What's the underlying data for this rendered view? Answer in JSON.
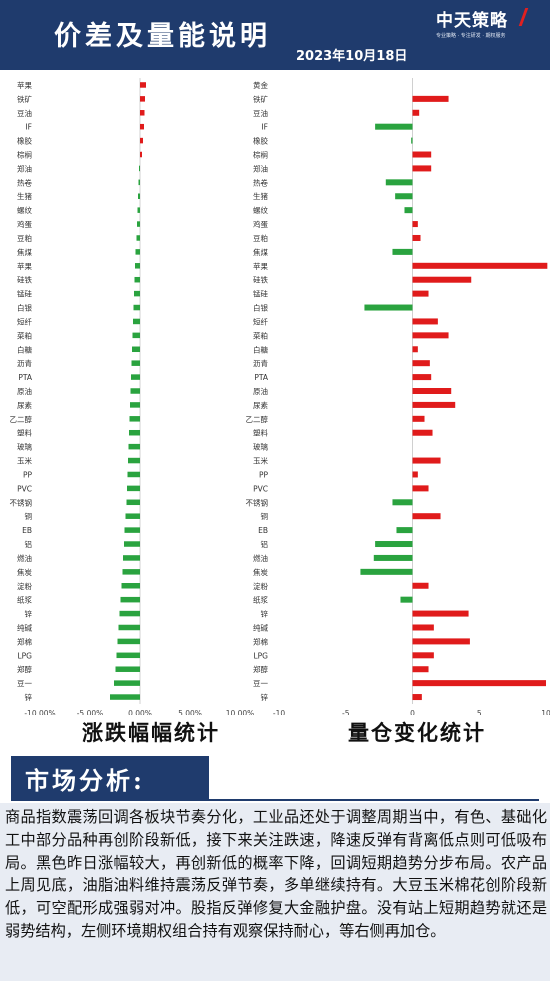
{
  "header": {
    "title": "价差及量能说明",
    "date": "2023年10月18日",
    "logo": {
      "brand": "中天策略",
      "slogan": "专业策略 · 专注研发 · 期权服务"
    }
  },
  "chart_titles": {
    "left": "涨跌幅幅统计",
    "right": "量仓变化统计"
  },
  "market": {
    "label": "市场分析:",
    "text": "商品指数震荡回调各板块节奏分化，工业品还处于调整周期当中，有色、基础化工中部分品种再创阶段新低，接下来关注跌速，降速反弹有背离低点则可低吸布局。黑色昨日涨幅较大，再创新低的概率下降，回调短期趋势分步布局。农产品上周见底，油脂油料维持震荡反弹节奏，多单继续持有。大豆玉米棉花创阶段新低，可空配形成强弱对冲。股指反弹修复大金融护盘。没有站上短期趋势就还是弱势结构，左侧环境期权组合持有观察保持耐心，等右侧再加仓。"
  },
  "chart_data": [
    {
      "type": "bar",
      "orientation": "horizontal",
      "title": "涨跌幅幅统计",
      "categories": [
        "苹果",
        "铁矿",
        "豆油",
        "IF",
        "橡胶",
        "棕榈",
        "郑油",
        "热卷",
        "生猪",
        "螺纹",
        "鸡蛋",
        "豆粕",
        "焦煤",
        "苹果",
        "硅铁",
        "锰硅",
        "白银",
        "短纤",
        "菜粕",
        "白糖",
        "沥青",
        "PTA",
        "原油",
        "尿素",
        "乙二醇",
        "塑料",
        "玻璃",
        "玉米",
        "PP",
        "PVC",
        "不锈钢",
        "铜",
        "EB",
        "铝",
        "燃油",
        "焦炭",
        "淀粉",
        "纸浆",
        "锌",
        "纯碱",
        "郑棉",
        "LPG",
        "郑醇",
        "豆一",
        "锌"
      ],
      "values": [
        0.6,
        0.5,
        0.45,
        0.4,
        0.3,
        0.2,
        -0.1,
        -0.15,
        -0.2,
        -0.25,
        -0.3,
        -0.35,
        -0.45,
        -0.5,
        -0.55,
        -0.6,
        -0.65,
        -0.7,
        -0.75,
        -0.8,
        -0.85,
        -0.9,
        -0.95,
        -1.0,
        -1.05,
        -1.1,
        -1.15,
        -1.2,
        -1.25,
        -1.3,
        -1.35,
        -1.45,
        -1.55,
        -1.6,
        -1.7,
        -1.75,
        -1.85,
        -1.95,
        -2.05,
        -2.15,
        -2.25,
        -2.35,
        -2.45,
        -2.6,
        -3.0
      ],
      "x_ticks": [
        "-10.00%",
        "-5.00%",
        "0.00%",
        "5.00%",
        "10.00%"
      ],
      "xlim": [
        -10,
        10
      ]
    },
    {
      "type": "bar",
      "orientation": "horizontal",
      "title": "量仓变化统计",
      "categories": [
        "黄金",
        "铁矿",
        "豆油",
        "IF",
        "橡胶",
        "棕榈",
        "郑油",
        "热卷",
        "生猪",
        "螺纹",
        "鸡蛋",
        "豆粕",
        "焦煤",
        "苹果",
        "硅铁",
        "锰硅",
        "白银",
        "短纤",
        "菜粕",
        "白糖",
        "沥青",
        "PTA",
        "原油",
        "尿素",
        "乙二醇",
        "塑料",
        "玻璃",
        "玉米",
        "PP",
        "PVC",
        "不锈钢",
        "铜",
        "EB",
        "铝",
        "燃油",
        "焦炭",
        "淀粉",
        "纸浆",
        "锌",
        "纯碱",
        "郑棉",
        "LPG",
        "郑醇",
        "豆一",
        "锌"
      ],
      "values": [
        0,
        2.7,
        0.5,
        -2.8,
        -0.1,
        1.4,
        1.4,
        -2.0,
        -1.3,
        -0.6,
        0.4,
        0.6,
        -1.5,
        10.1,
        4.4,
        1.2,
        -3.6,
        1.9,
        2.7,
        0.4,
        1.3,
        1.4,
        2.9,
        3.2,
        0.9,
        1.5,
        0,
        2.1,
        0.4,
        1.2,
        -1.5,
        2.1,
        -1.2,
        -2.8,
        -2.9,
        -3.9,
        1.2,
        -0.9,
        4.2,
        1.6,
        4.3,
        1.6,
        1.2,
        10.0,
        0.7
      ],
      "x_ticks": [
        "-10",
        "-5",
        "0",
        "5",
        "10"
      ],
      "xlim": [
        -10,
        10
      ]
    }
  ],
  "colors": {
    "header_bg": "#1f3b6d",
    "positive": "#e01b1b",
    "negative": "#2aa33f",
    "analysis_bg": "#e8ecf3"
  }
}
